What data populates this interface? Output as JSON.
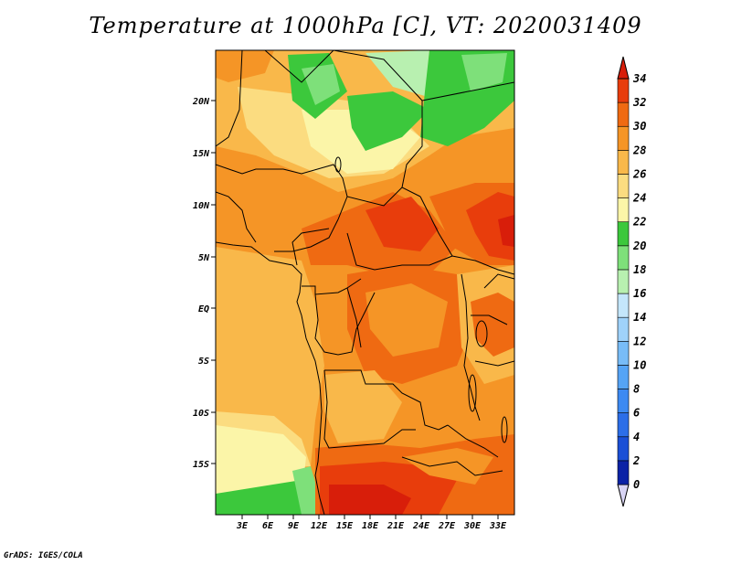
{
  "title": "Temperature at 1000hPa [C], VT: 2020031409",
  "credit": "GrADS: IGES/COLA",
  "lat_labels": [
    "20N",
    "15N",
    "10N",
    "5N",
    "EQ",
    "5S",
    "10S",
    "15S"
  ],
  "lon_labels": [
    "3E",
    "6E",
    "9E",
    "12E",
    "15E",
    "18E",
    "21E",
    "24E",
    "27E",
    "30E",
    "33E"
  ],
  "colorbar": {
    "unit": "C",
    "labels": [
      "0",
      "2",
      "4",
      "6",
      "8",
      "10",
      "12",
      "14",
      "16",
      "18",
      "20",
      "22",
      "24",
      "26",
      "28",
      "30",
      "32",
      "34"
    ],
    "colors": [
      "#0a0a6e",
      "#0b22a6",
      "#1a4fd6",
      "#2c6ee8",
      "#3d8af2",
      "#55a4f5",
      "#78bcf7",
      "#9fd2fa",
      "#c4e6fb",
      "#b8f0b0",
      "#7ee07a",
      "#3cc83c",
      "#fbf5a8",
      "#fbdc80",
      "#f9b84a",
      "#f59526",
      "#ef6a12",
      "#e83d0c",
      "#d81e0a"
    ]
  }
}
